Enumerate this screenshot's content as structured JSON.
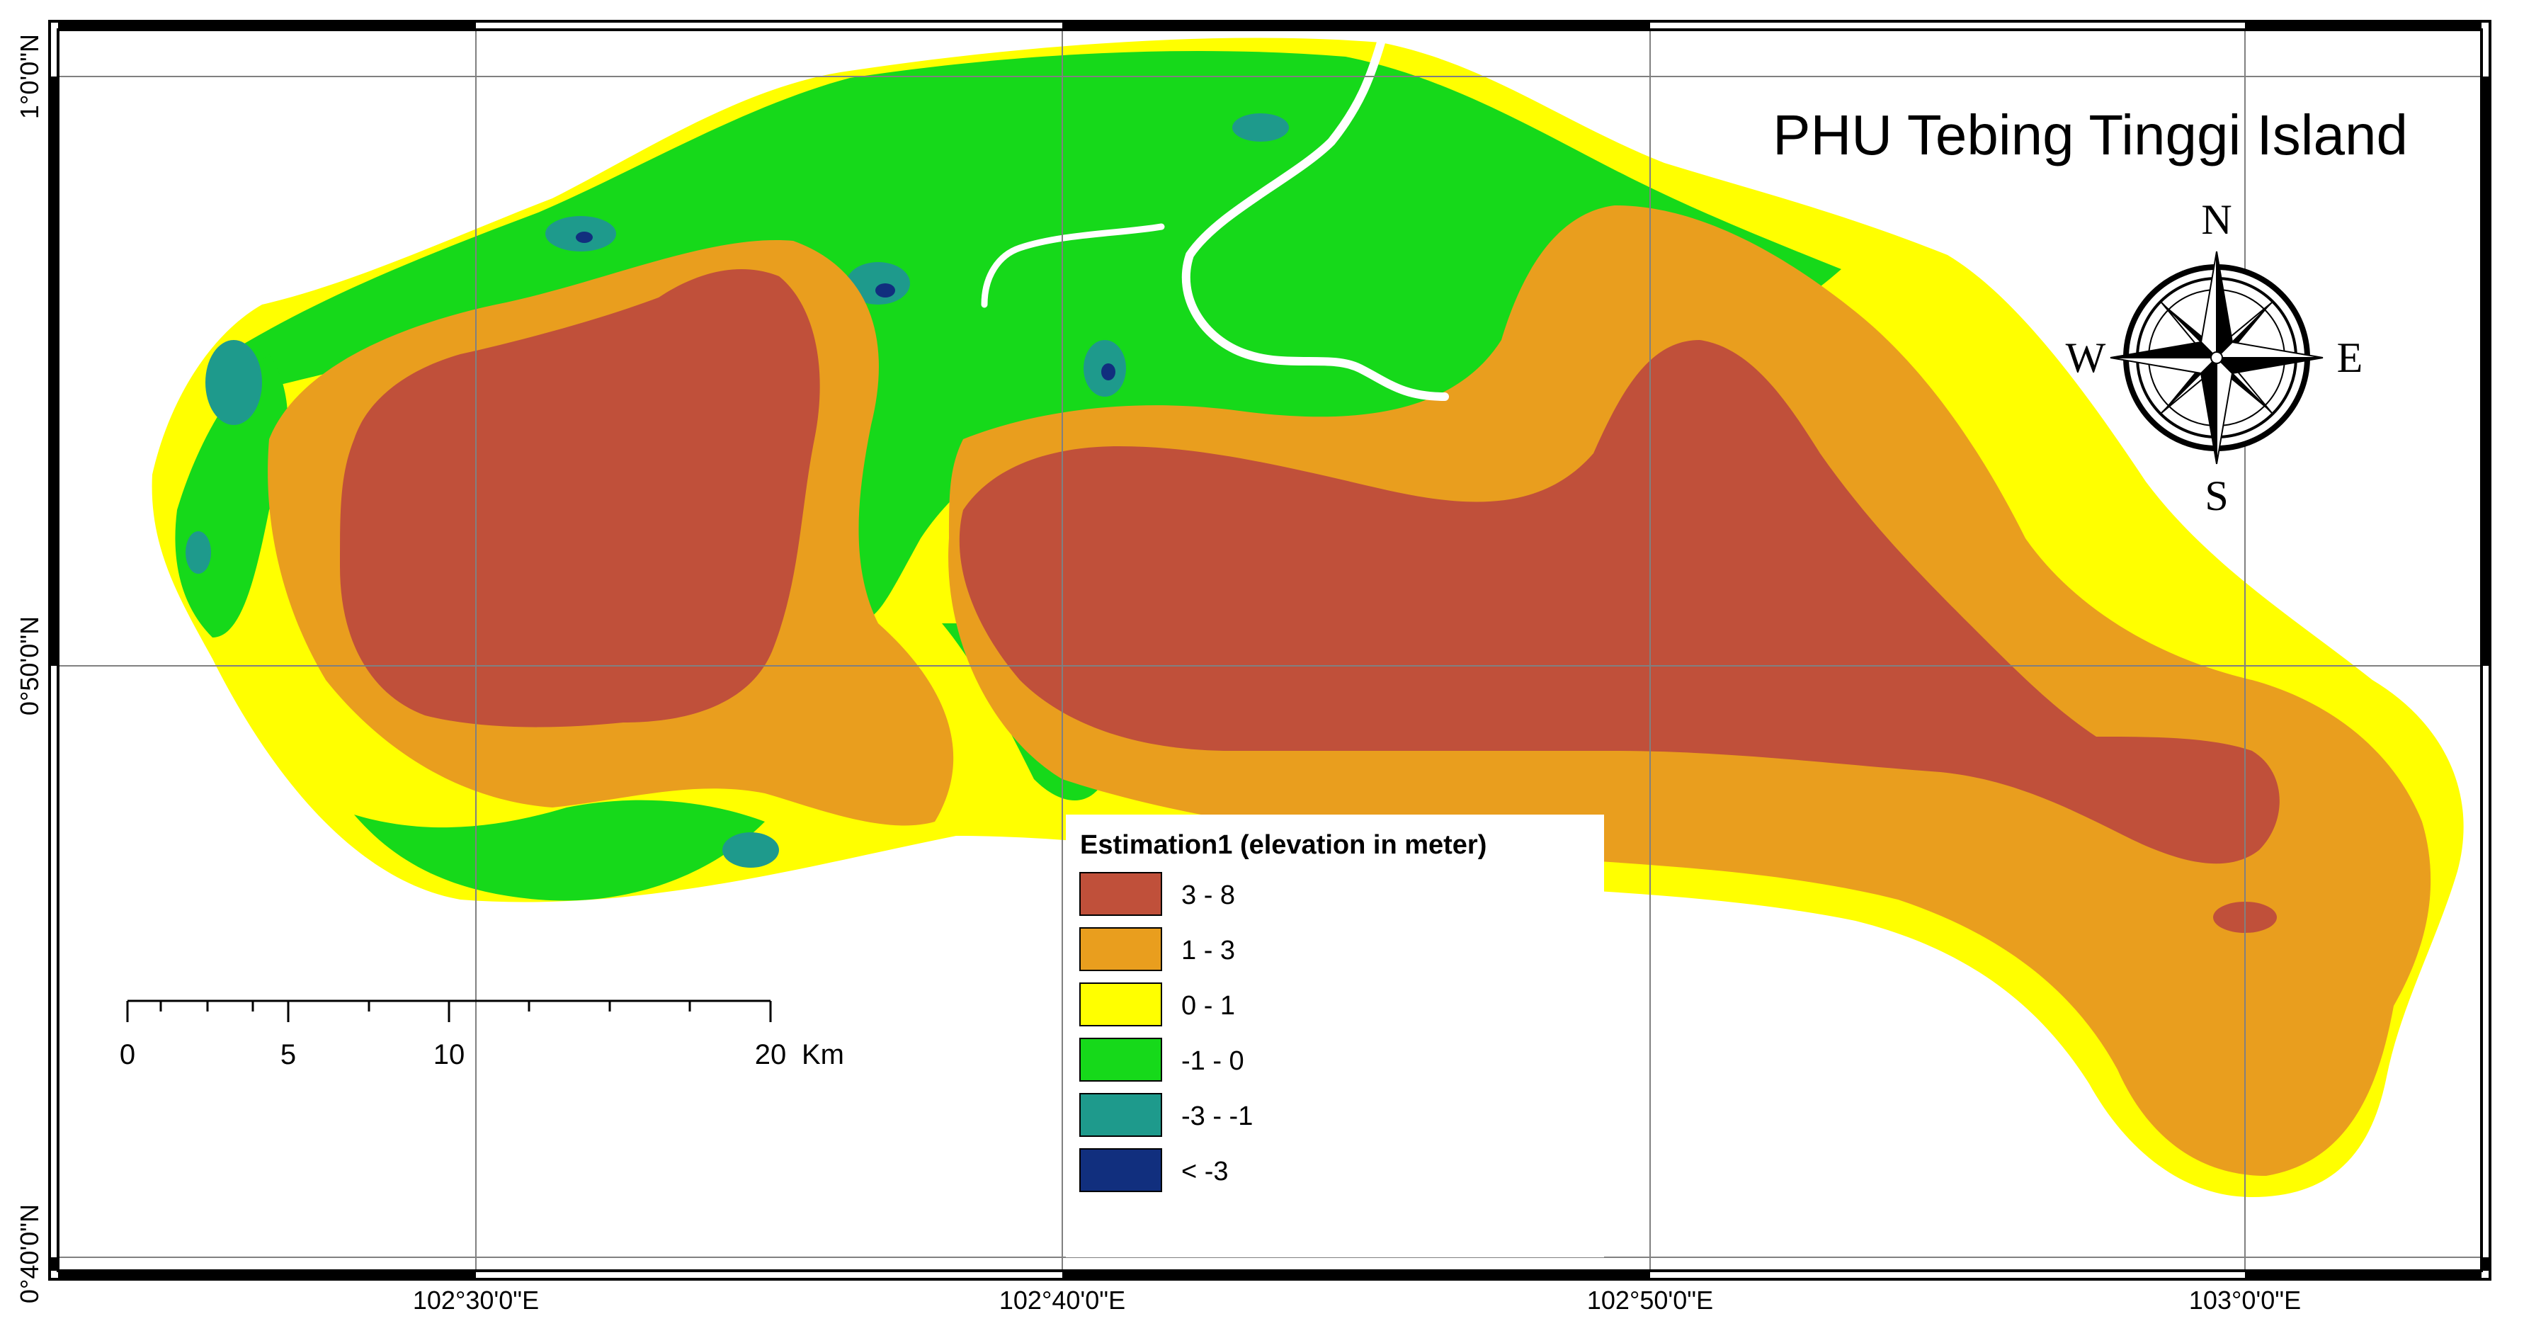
{
  "map": {
    "title": "PHU Tebing Tinggi Island",
    "compass": {
      "north": "N",
      "south": "S",
      "east": "E",
      "west": "W"
    },
    "legend": {
      "title": "Estimation1 (elevation in meter)",
      "classes": [
        {
          "label": "3 - 8",
          "color": "#c0503a"
        },
        {
          "label": "1 - 3",
          "color": "#e99e1e"
        },
        {
          "label": "0 - 1",
          "color": "#ffff00"
        },
        {
          "label": "-1 - 0",
          "color": "#16d91a"
        },
        {
          "label": "-3 - -1",
          "color": "#1e9a8c"
        },
        {
          "label": "< -3",
          "color": "#112f7e"
        }
      ]
    },
    "scale_bar": {
      "ticks": [
        "0",
        "5",
        "10",
        "20"
      ],
      "unit": "Km"
    },
    "longitude_labels": [
      "102°30'0\"E",
      "102°40'0\"E",
      "102°50'0\"E",
      "103°0'0\"E"
    ],
    "latitude_labels": [
      "1°0'0\"N",
      "0°50'0\"N",
      "0°40'0\"N"
    ]
  }
}
